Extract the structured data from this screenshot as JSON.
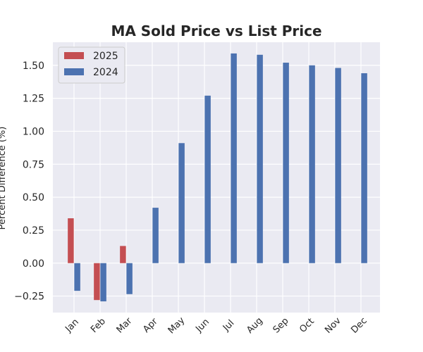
{
  "chart_data": {
    "type": "bar",
    "title": "MA Sold Price vs List Price",
    "xlabel": "",
    "ylabel": "Percent Difference (%)",
    "categories": [
      "Jan",
      "Feb",
      "Mar",
      "Apr",
      "May",
      "Jun",
      "Jul",
      "Aug",
      "Sep",
      "Oct",
      "Nov",
      "Dec"
    ],
    "series": [
      {
        "name": "2025",
        "color": "#c44e52",
        "values": [
          0.34,
          -0.28,
          0.13,
          null,
          null,
          null,
          null,
          null,
          null,
          null,
          null,
          null
        ]
      },
      {
        "name": "2024",
        "color": "#4c72b0",
        "values": [
          -0.21,
          -0.29,
          -0.235,
          0.42,
          0.91,
          1.27,
          1.59,
          1.58,
          1.52,
          1.5,
          1.48,
          1.44
        ]
      }
    ],
    "ylim": [
      -0.375,
      1.675
    ],
    "yticks": [
      -0.25,
      0.0,
      0.25,
      0.5,
      0.75,
      1.0,
      1.25,
      1.5
    ],
    "ytick_labels": [
      "−0.25",
      "0.00",
      "0.25",
      "0.50",
      "0.75",
      "1.00",
      "1.25",
      "1.50"
    ],
    "grid": true,
    "legend_position": "top-left",
    "background": "#eaeaf2"
  }
}
